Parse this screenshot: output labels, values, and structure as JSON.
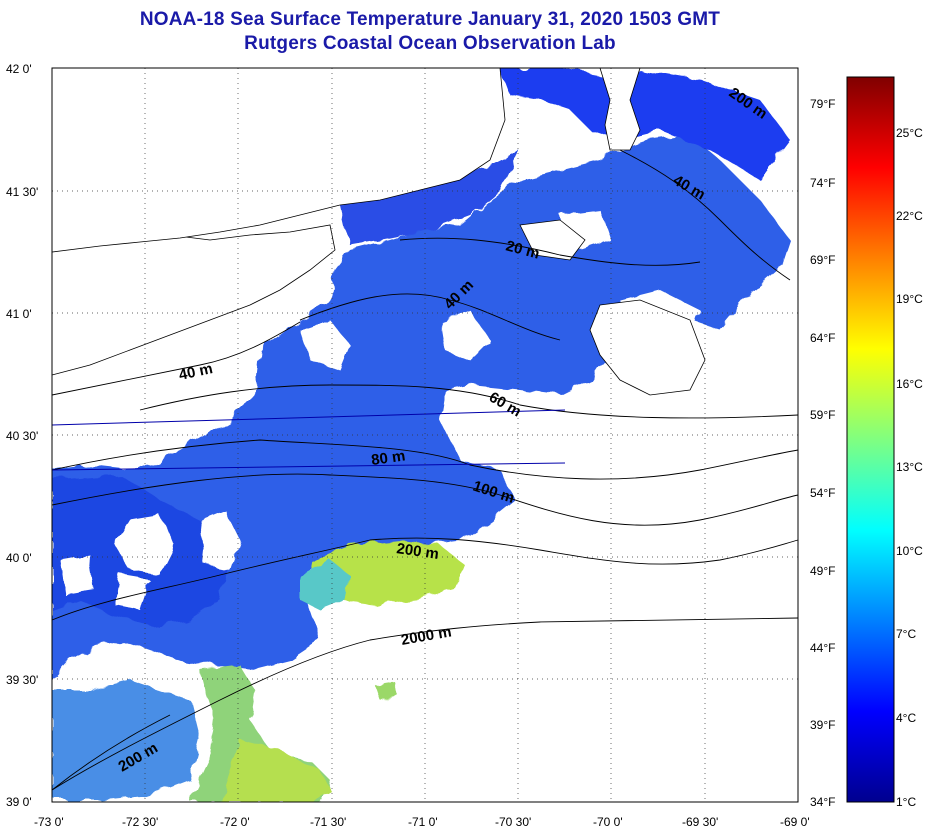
{
  "header": {
    "title": "NOAA-18 Sea Surface Temperature January 31, 2020 1503 GMT",
    "subtitle": "Rutgers Coastal Ocean Observation Lab"
  },
  "map": {
    "lat_labels": [
      "42 0'",
      "41 30'",
      "41 0'",
      "40 30'",
      "40 0'",
      "39 30'",
      "39 0'"
    ],
    "lon_labels": [
      "-73 0'",
      "-72 30'",
      "-72 0'",
      "-71 30'",
      "-71 0'",
      "-70 30'",
      "-70 0'",
      "-69 30'",
      "-69 0'"
    ],
    "fahrenheit_labels": [
      "79°F",
      "74°F",
      "69°F",
      "64°F",
      "59°F",
      "54°F",
      "49°F",
      "44°F",
      "39°F",
      "34°F"
    ],
    "depth_labels": [
      "200 m",
      "40 m",
      "20 m",
      "40 m",
      "40 m",
      "60 m",
      "80 m",
      "100 m",
      "200 m",
      "2000 m",
      "200 m"
    ]
  },
  "colorbar": {
    "celsius_labels": [
      "25°C",
      "22°C",
      "19°C",
      "16°C",
      "13°C",
      "10°C",
      "7°C",
      "4°C",
      "1°C"
    ],
    "colors": [
      "#00008f",
      "#0000ff",
      "#0080ff",
      "#00ffff",
      "#80ff80",
      "#ffff00",
      "#ff8000",
      "#ff0000",
      "#800000"
    ]
  }
}
